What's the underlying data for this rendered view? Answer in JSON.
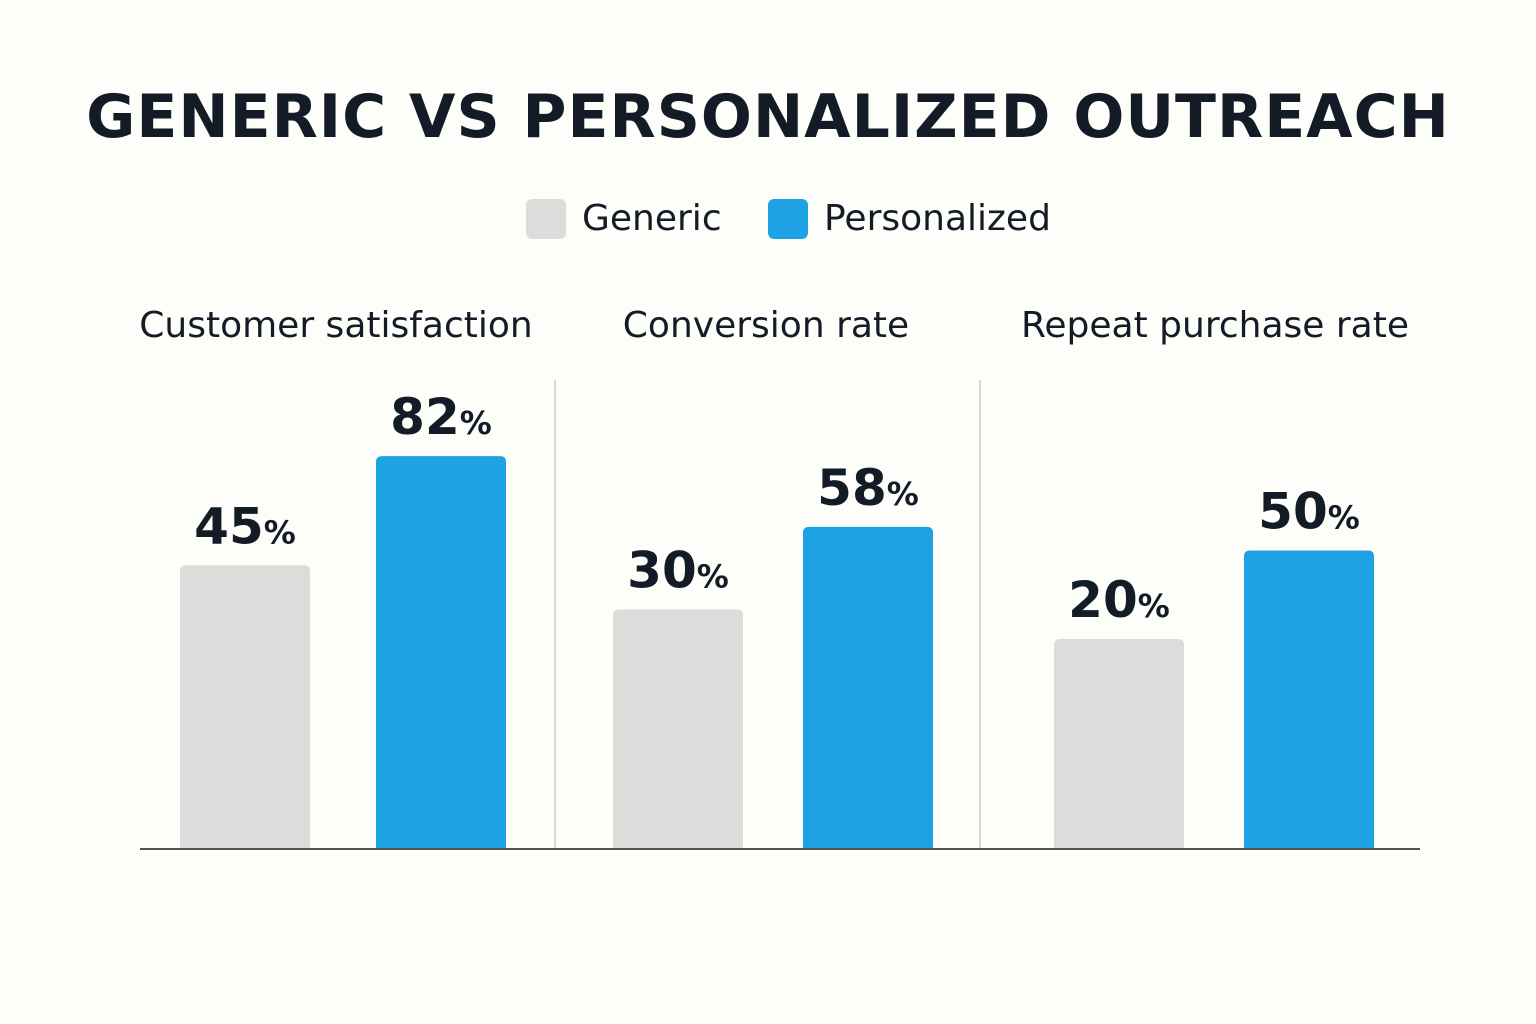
{
  "chart_data": {
    "type": "bar",
    "title": "GENERIC VS PERSONALIZED OUTREACH",
    "categories": [
      "Customer satisfaction",
      "Conversion rate",
      "Repeat purchase rate"
    ],
    "series": [
      {
        "name": "Generic",
        "values": [
          45,
          30,
          20
        ],
        "color": "#dcdcdb"
      },
      {
        "name": "Personalized",
        "values": [
          82,
          58,
          50
        ],
        "color": "#1fa2e4"
      }
    ],
    "unit": "%",
    "legend": "top-center",
    "grid": false
  }
}
